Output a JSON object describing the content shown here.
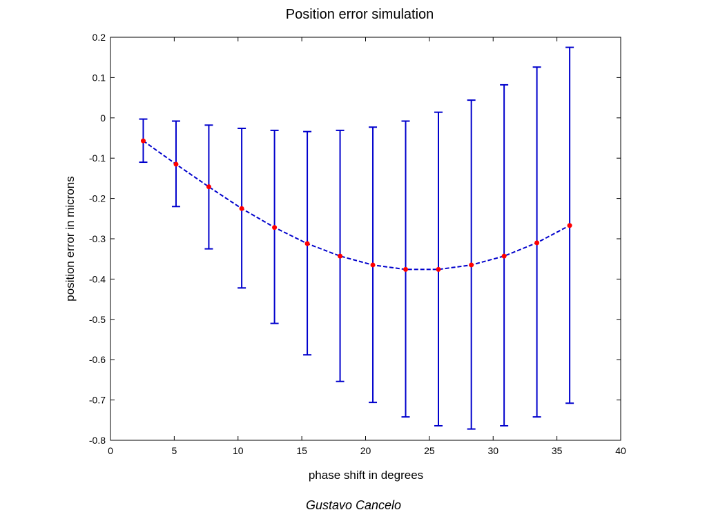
{
  "chart_data": {
    "type": "scatter",
    "title": "Position error simulation",
    "xlabel": "phase shift in degrees",
    "ylabel": "position error in microns",
    "xlim": [
      0,
      40
    ],
    "ylim": [
      -0.8,
      0.2
    ],
    "xticks": [
      "0",
      "5",
      "10",
      "15",
      "20",
      "25",
      "30",
      "35",
      "40"
    ],
    "yticks": [
      "0.2",
      "0.1",
      "0",
      "-0.1",
      "-0.2",
      "-0.3",
      "-0.4",
      "-0.5",
      "-0.6",
      "-0.7",
      "-0.8"
    ],
    "grid": false,
    "series": [
      {
        "x": [
          2.57,
          5.14,
          7.71,
          10.29,
          12.86,
          15.43,
          18.0,
          20.57,
          23.14,
          25.71,
          28.29,
          30.86,
          33.43,
          36.0
        ],
        "y": [
          -0.057,
          -0.115,
          -0.171,
          -0.225,
          -0.272,
          -0.312,
          -0.343,
          -0.365,
          -0.376,
          -0.376,
          -0.365,
          -0.343,
          -0.31,
          -0.267
        ],
        "y_low": [
          -0.11,
          -0.22,
          -0.325,
          -0.422,
          -0.51,
          -0.588,
          -0.654,
          -0.706,
          -0.742,
          -0.764,
          -0.772,
          -0.764,
          -0.742,
          -0.708
        ],
        "y_high": [
          -0.003,
          -0.008,
          -0.018,
          -0.026,
          -0.031,
          -0.034,
          -0.031,
          -0.023,
          -0.008,
          0.014,
          0.044,
          0.082,
          0.126,
          0.175
        ],
        "marker_color": "#ff0000",
        "line_color": "#0000cc",
        "line_style": "dashed"
      }
    ]
  },
  "footer": {
    "credit": "Gustavo Cancelo"
  }
}
